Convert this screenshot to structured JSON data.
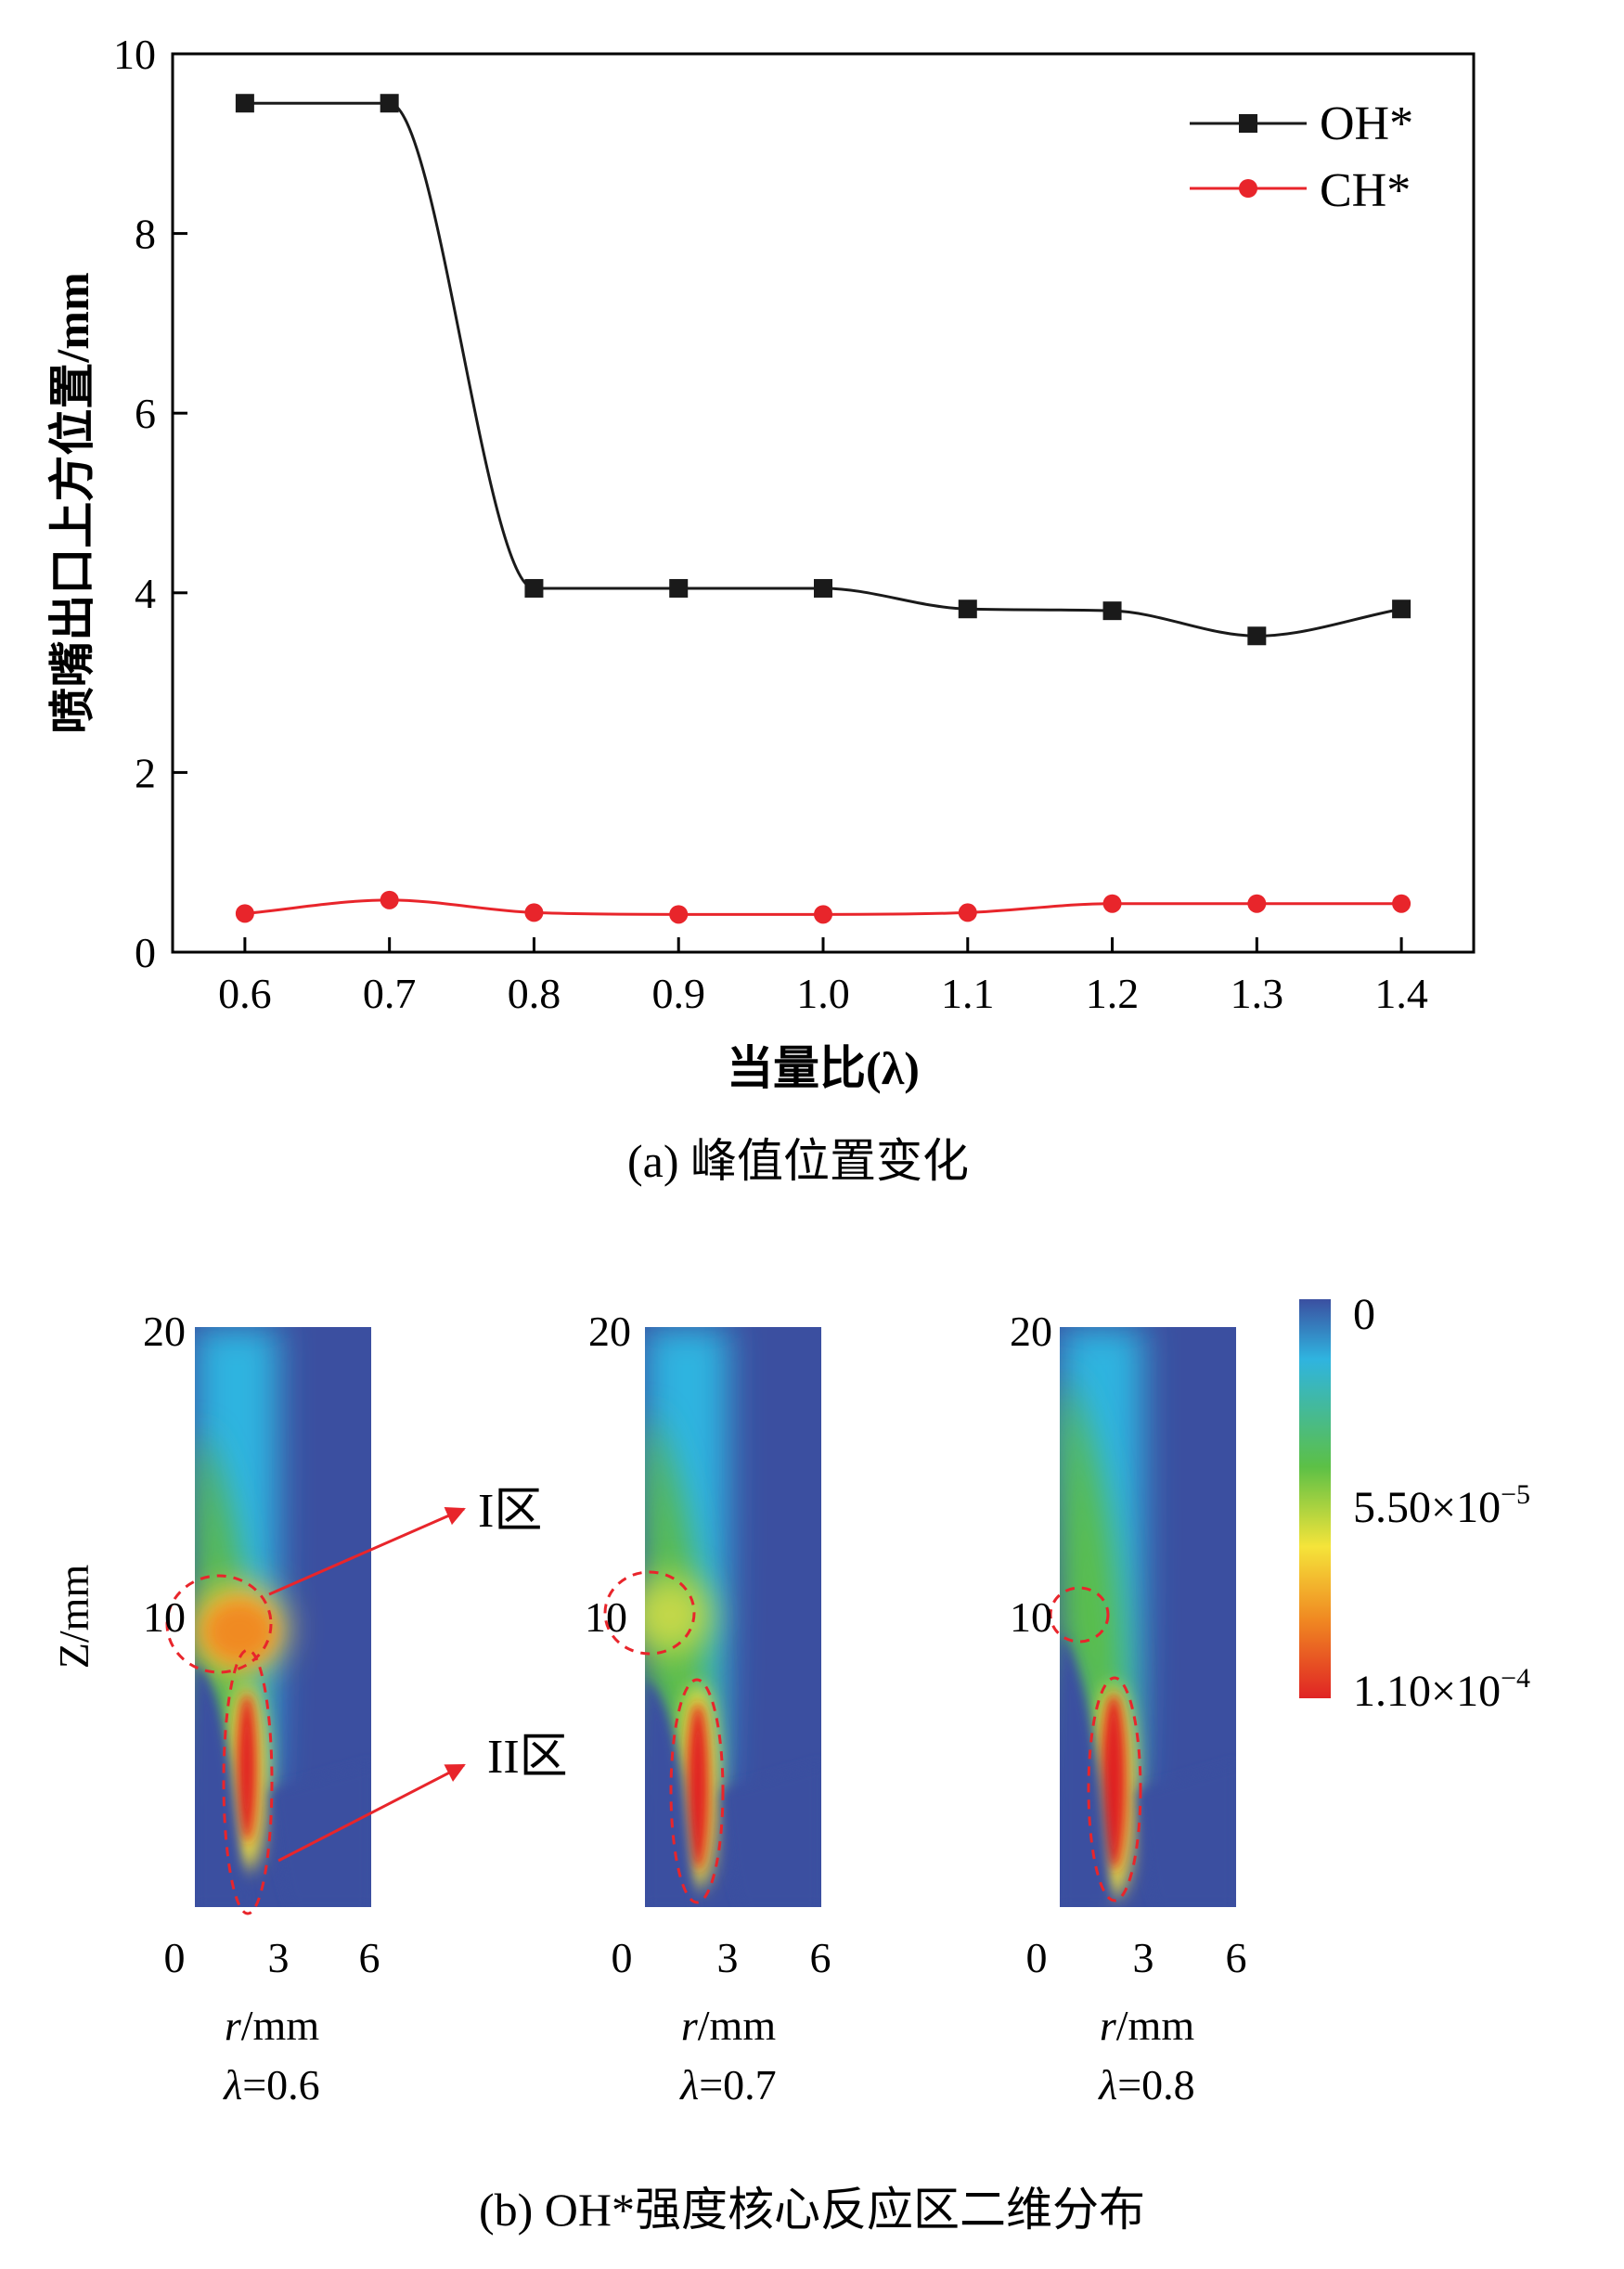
{
  "figure_a": {
    "caption": "(a) 峰值位置变化",
    "chart_data": {
      "type": "line",
      "xlabel": "当量比(λ)",
      "ylabel": "喷嘴出口上方位置/mm",
      "x": [
        0.6,
        0.7,
        0.8,
        0.9,
        1.0,
        1.1,
        1.2,
        1.3,
        1.4
      ],
      "x_tick_labels": [
        "0.6",
        "0.7",
        "0.8",
        "0.9",
        "1.0",
        "1.1",
        "1.2",
        "1.3",
        "1.4"
      ],
      "y_ticks": [
        "0",
        "2",
        "4",
        "6",
        "8",
        "10"
      ],
      "xlim": [
        0.55,
        1.45
      ],
      "ylim": [
        0,
        10
      ],
      "legend_position": "top-right",
      "series": [
        {
          "name": "OH*",
          "marker": "square",
          "color": "#1a1a1a",
          "values": [
            9.45,
            9.45,
            4.05,
            4.05,
            4.05,
            3.82,
            3.8,
            3.52,
            3.82
          ]
        },
        {
          "name": "CH*",
          "marker": "circle",
          "color": "#e8252b",
          "values": [
            0.43,
            0.58,
            0.44,
            0.42,
            0.42,
            0.44,
            0.54,
            0.54,
            0.54
          ]
        }
      ]
    }
  },
  "figure_b": {
    "caption": "(b) OH*强度核心反应区二维分布",
    "chart_data": {
      "type": "heatmap",
      "ylabel": "Z/mm",
      "y_ticks": [
        "20",
        "10"
      ],
      "x_ticks": [
        "0",
        "3",
        "6"
      ],
      "xlabel_italic": "r",
      "xlabel_unit": "/mm",
      "panels": [
        {
          "lambda_symbol": "λ",
          "lambda_value": "=0.6"
        },
        {
          "lambda_symbol": "λ",
          "lambda_value": "=0.7"
        },
        {
          "lambda_symbol": "λ",
          "lambda_value": "=0.8"
        }
      ],
      "annotations": {
        "zone_1": "I区",
        "zone_2": "II区"
      },
      "colorbar": {
        "labels": [
          "0",
          "5.50×10",
          "1.10×10"
        ],
        "exponents": [
          "",
          "−5",
          "−4"
        ],
        "colors": [
          "#3b4fa0",
          "#2fb4e0",
          "#5cc046",
          "#f5e43a",
          "#f08a22",
          "#e02424"
        ]
      }
    }
  }
}
